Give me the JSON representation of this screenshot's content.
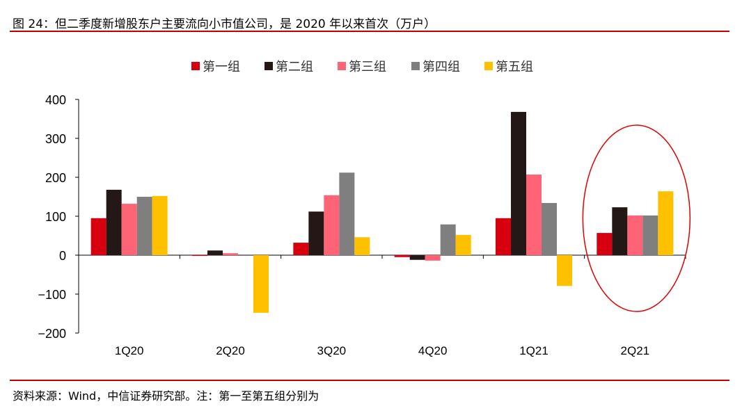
{
  "title": "图 24：但二季度新增股东户主要流向小市值公司，是 2020 年以来首次（万户）",
  "footer": "资料来源：Wind，中信证券研究部。注：第一至第五组分别为",
  "chart_data": {
    "type": "bar",
    "categories": [
      "1Q20",
      "2Q20",
      "3Q20",
      "4Q20",
      "1Q21",
      "2Q21"
    ],
    "ylim": [
      -200,
      400
    ],
    "yticks": [
      400,
      300,
      200,
      100,
      0,
      -100,
      -200
    ],
    "legend_position": "top",
    "grid": false,
    "highlight": "2Q21",
    "series": [
      {
        "name": "第一组",
        "color": "#d7000f",
        "values": [
          95,
          -2,
          32,
          -5,
          95,
          57
        ]
      },
      {
        "name": "第二组",
        "color": "#231815",
        "values": [
          168,
          12,
          112,
          -12,
          368,
          123
        ]
      },
      {
        "name": "第三组",
        "color": "#ff6376",
        "values": [
          132,
          5,
          154,
          -14,
          207,
          102
        ]
      },
      {
        "name": "第四组",
        "color": "#7f7f7f",
        "values": [
          150,
          0,
          212,
          79,
          134,
          102
        ]
      },
      {
        "name": "第五组",
        "color": "#ffc000",
        "values": [
          152,
          -148,
          46,
          52,
          -79,
          164
        ]
      }
    ]
  }
}
